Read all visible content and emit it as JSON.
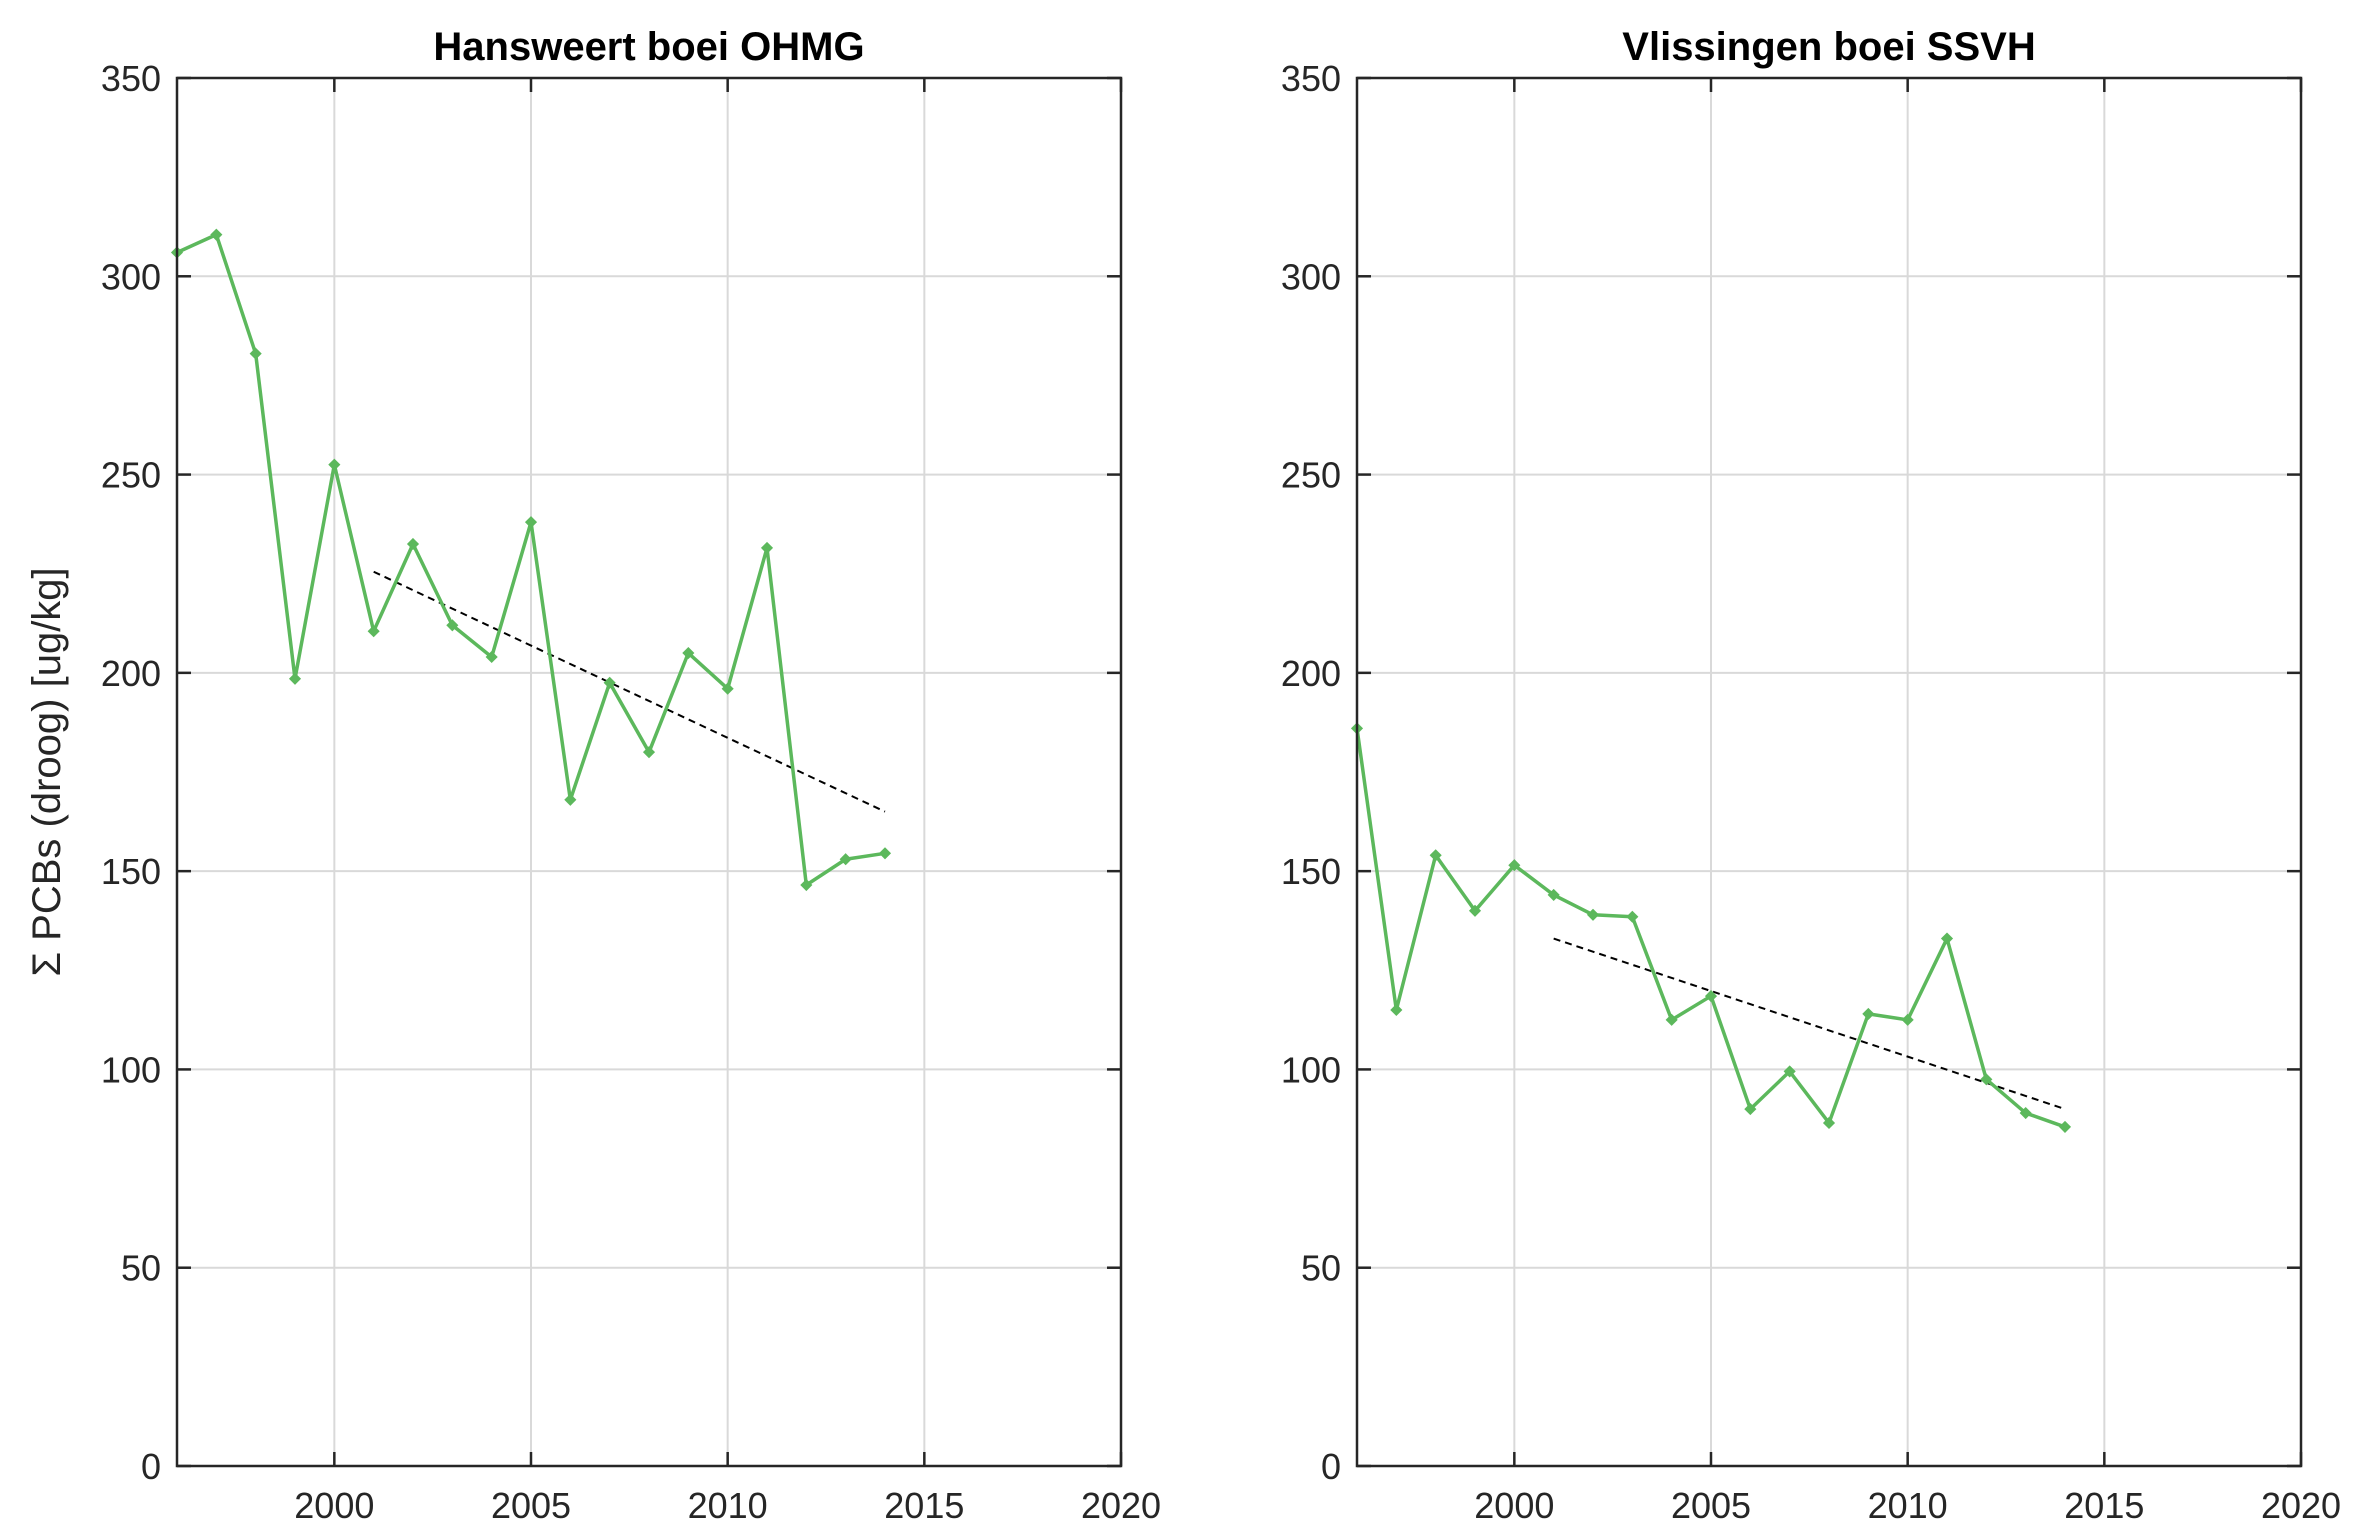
{
  "chart_data": [
    {
      "type": "line",
      "title": "Hansweert boei OHMG",
      "xlabel": "",
      "ylabel": "Σ PCBs (droog) [ug/kg]",
      "xlim": [
        1996,
        2020
      ],
      "ylim": [
        0,
        350
      ],
      "xticks": [
        2000,
        2005,
        2010,
        2015,
        2020
      ],
      "yticks": [
        0,
        50,
        100,
        150,
        200,
        250,
        300,
        350
      ],
      "grid": true,
      "series": [
        {
          "x": [
            1996,
            1997,
            1998,
            1999,
            2000,
            2001,
            2002,
            2003,
            2004,
            2005,
            2006,
            2007,
            2008,
            2009,
            2010,
            2011,
            2012,
            2013,
            2014
          ],
          "values": [
            306,
            310.5,
            280.5,
            198.5,
            252.5,
            210.5,
            232.5,
            212,
            204,
            238,
            168,
            197.5,
            180,
            205,
            196,
            231.5,
            146.5,
            153,
            154.5
          ],
          "color": "#5cb85c",
          "marker": "diamond"
        }
      ],
      "trend": {
        "x": [
          2001,
          2014
        ],
        "values": [
          225.5,
          165
        ],
        "color": "#000000",
        "style": "dashed"
      }
    },
    {
      "type": "line",
      "title": "Vlissingen boei SSVH",
      "xlabel": "",
      "ylabel": "",
      "xlim": [
        1996,
        2020
      ],
      "ylim": [
        0,
        350
      ],
      "xticks": [
        2000,
        2005,
        2010,
        2015,
        2020
      ],
      "yticks": [
        0,
        50,
        100,
        150,
        200,
        250,
        300,
        350
      ],
      "grid": true,
      "series": [
        {
          "x": [
            1996,
            1997,
            1998,
            1999,
            2000,
            2001,
            2002,
            2003,
            2004,
            2005,
            2006,
            2007,
            2008,
            2009,
            2010,
            2011,
            2012,
            2013,
            2014
          ],
          "values": [
            186,
            115,
            154,
            140,
            151.5,
            144,
            139,
            138.5,
            112.5,
            118.5,
            90,
            99.5,
            86.5,
            114,
            112.5,
            133,
            97.5,
            89,
            85.5
          ],
          "color": "#5cb85c",
          "marker": "diamond"
        }
      ],
      "trend": {
        "x": [
          2001,
          2014
        ],
        "values": [
          133,
          90
        ],
        "color": "#000000",
        "style": "dashed"
      }
    }
  ]
}
